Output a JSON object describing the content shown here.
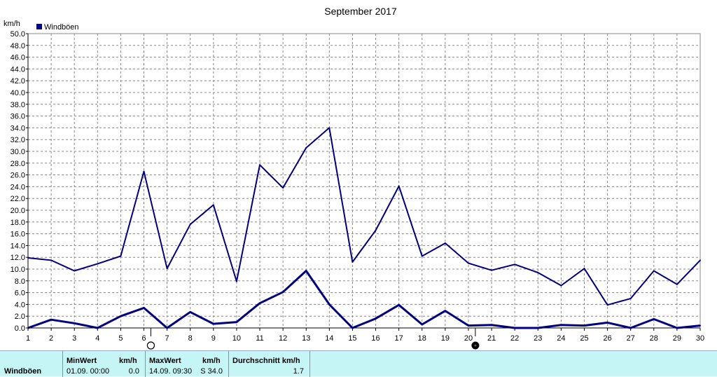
{
  "chart_data": {
    "type": "line",
    "title": "September 2017",
    "ylabel": "km/h",
    "xlabel": "",
    "legend": {
      "label": "Windböen",
      "placement": "top-left",
      "color": "#000080"
    },
    "grid": true,
    "ylim": [
      0,
      50
    ],
    "xlim": [
      1,
      30
    ],
    "yticks": [
      "0.0",
      "2.0",
      "4.0",
      "6.0",
      "8.0",
      "10.0",
      "12.0",
      "14.0",
      "16.0",
      "18.0",
      "20.0",
      "22.0",
      "24.0",
      "26.0",
      "28.0",
      "30.0",
      "32.0",
      "34.0",
      "36.0",
      "38.0",
      "40.0",
      "42.0",
      "44.0",
      "46.0",
      "48.0",
      "50.0"
    ],
    "xticks": [
      "1",
      "2",
      "3",
      "4",
      "5",
      "6",
      "7",
      "8",
      "9",
      "10",
      "11",
      "12",
      "13",
      "14",
      "15",
      "16",
      "17",
      "18",
      "19",
      "20",
      "21",
      "22",
      "23",
      "24",
      "25",
      "26",
      "27",
      "28",
      "29",
      "30"
    ],
    "series": [
      {
        "color": "#000080",
        "x": [
          1,
          2,
          3,
          4,
          5,
          6,
          7,
          8,
          9,
          10,
          11,
          12,
          13,
          14,
          15,
          16,
          17,
          18,
          19,
          20,
          21,
          22,
          23,
          24,
          25,
          26,
          27,
          28,
          29,
          30
        ],
        "values": [
          11.9,
          11.5,
          9.7,
          10.9,
          12.2,
          26.6,
          10.1,
          17.6,
          20.9,
          7.9,
          27.7,
          23.8,
          30.6,
          34.0,
          11.2,
          16.6,
          24.1,
          12.2,
          14.4,
          11.0,
          9.8,
          10.8,
          9.4,
          7.2,
          10.1,
          3.9,
          5.0,
          9.7,
          7.4,
          11.5
        ]
      },
      {
        "color": "#000080",
        "x": [
          1,
          2,
          3,
          4,
          5,
          6,
          7,
          8,
          9,
          10,
          11,
          12,
          13,
          14,
          15,
          16,
          17,
          18,
          19,
          20,
          21,
          22,
          23,
          24,
          25,
          26,
          27,
          28,
          29,
          30
        ],
        "values": [
          0.0,
          1.4,
          0.8,
          0.0,
          2.0,
          3.4,
          0.0,
          2.7,
          0.7,
          1.0,
          4.2,
          6.1,
          9.7,
          4.0,
          0.0,
          1.6,
          3.9,
          0.6,
          2.9,
          0.4,
          0.5,
          0.0,
          0.0,
          0.5,
          0.4,
          0.9,
          0.0,
          1.5,
          0.0,
          0.4
        ]
      }
    ],
    "annotations": [
      {
        "type": "full-moon",
        "day": 6.3
      },
      {
        "type": "new-moon",
        "day": 20.3
      }
    ]
  },
  "stats": {
    "row_label": "Windböen",
    "min": {
      "header": "MinWert",
      "unit": "km/h",
      "datetime": "01.09.  00:00",
      "value": "0.0"
    },
    "max": {
      "header": "MaxWert",
      "unit": "km/h",
      "datetime": "14.09.  09:30",
      "value": "S 34.0"
    },
    "avg": {
      "header": "Durchschnitt km/h",
      "value": "1.7"
    }
  }
}
